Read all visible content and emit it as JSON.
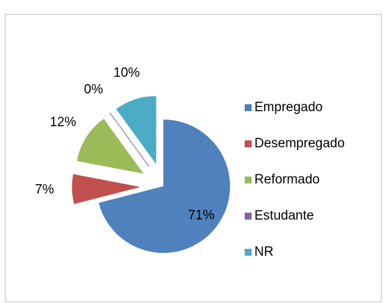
{
  "chart_data": {
    "type": "pie",
    "categories": [
      "Empregado",
      "Desempregado",
      "Reformado",
      "Estudante",
      "NR"
    ],
    "values": [
      71,
      7,
      12,
      0,
      10
    ],
    "value_labels": [
      "71%",
      "7%",
      "12%",
      "0%",
      "10%"
    ],
    "colors": [
      "#4f81bd",
      "#c0504d",
      "#9bbb59",
      "#8064a2",
      "#4bacc6"
    ],
    "legend": "right"
  }
}
